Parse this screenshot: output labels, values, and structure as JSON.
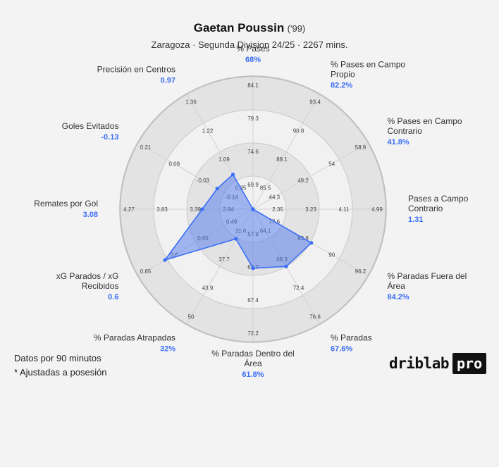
{
  "header": {
    "player_name": "Gaetan Poussin",
    "player_year": "('99)",
    "subtitle": "Zaragoza · Segunda Division 24/25 · 2267 mins."
  },
  "footer": {
    "note_1": "Datos por 90 minutos",
    "note_2": "* Ajustadas a posesión",
    "logo_text": "driblab",
    "logo_badge": "pro"
  },
  "colors": {
    "accent": "#3b6ef5",
    "fill": "#4f79f0",
    "background": "#f3f3f3",
    "ring_fill": "#e3e3e3"
  },
  "chart_data": {
    "type": "radar",
    "grid": true,
    "ring_count": 4,
    "axes": [
      {
        "label": [
          "% Pases"
        ],
        "value": "68%",
        "score": 0.0,
        "ticks": [
          "69.9",
          "74.6",
          "79.3",
          "84.1"
        ]
      },
      {
        "label": [
          "% Pases en Campo",
          "Propio"
        ],
        "value": "82.2%",
        "score": 0.0,
        "ticks": [
          "85.5",
          "88.1",
          "90.8",
          "93.4"
        ]
      },
      {
        "label": [
          "% Pases en Campo",
          "Contrario"
        ],
        "value": "41.8%",
        "score": 0.0,
        "ticks": [
          "44.3",
          "49.2",
          "54",
          "58.9"
        ]
      },
      {
        "label": [
          "Pases a Campo",
          "Contrario"
        ],
        "value": "1.31",
        "score": 0.0,
        "ticks": [
          "2.35",
          "3.23",
          "4.11",
          "4.99"
        ]
      },
      {
        "label": [
          "% Paradas Fuera del",
          "Área"
        ],
        "value": "84.2%",
        "score": 0.45,
        "ticks": [
          "77.6",
          "83.8",
          "90",
          "96.2"
        ]
      },
      {
        "label": [
          "% Paradas"
        ],
        "value": "67.6%",
        "score": 0.44,
        "ticks": [
          "64.1",
          "68.3",
          "72.4",
          "76.6"
        ]
      },
      {
        "label": [
          "% Paradas Dentro del",
          "Área"
        ],
        "value": "61.8%",
        "score": 0.38,
        "ticks": [
          "57.9",
          "62.7",
          "67.4",
          "72.2"
        ]
      },
      {
        "label": [
          "% Paradas Atrapadas"
        ],
        "value": "32%",
        "score": 0.17,
        "ticks": [
          "31.6",
          "37.7",
          "43.9",
          "50"
        ]
      },
      {
        "label": [
          "xG Parados / xG",
          "Recibidos"
        ],
        "value": "0.6",
        "score": 0.74,
        "ticks": [
          "0.49",
          "0.55",
          "0.6",
          "0.65"
        ]
      },
      {
        "label": [
          "Remates por Gol"
        ],
        "value": "3.08",
        "score": 0.31,
        "ticks": [
          "2.94",
          "3.39",
          "3.83",
          "4.27"
        ]
      },
      {
        "label": [
          "Goles Evitados"
        ],
        "value": "-0.13",
        "score": 0.23,
        "ticks": [
          "-0.14",
          "-0.03",
          "0.09",
          "0.21"
        ]
      },
      {
        "label": [
          "Precisión en Centros"
        ],
        "value": "0.97",
        "score": 0.22,
        "ticks": [
          "0.95",
          "1.09",
          "1.22",
          "1.36"
        ]
      }
    ]
  }
}
